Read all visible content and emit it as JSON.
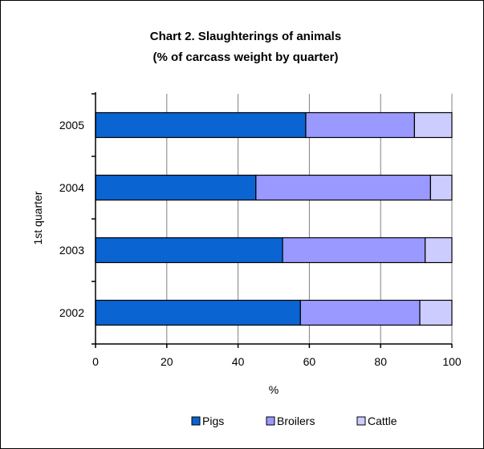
{
  "chart_data": {
    "type": "bar",
    "orientation": "horizontal",
    "stacked": true,
    "title_line1": "Chart 2.  Slaughterings of animals",
    "title_line2": "(% of carcass weight by quarter)",
    "xlabel": "%",
    "ylabel": "1st quarter",
    "xlim": [
      0,
      100
    ],
    "xticks": [
      "0",
      "20",
      "40",
      "60",
      "80",
      "100"
    ],
    "xtick_values": [
      0,
      20,
      40,
      60,
      80,
      100
    ],
    "categories": [
      "2005",
      "2004",
      "2003",
      "2002"
    ],
    "series": [
      {
        "name": "Pigs",
        "color": "#0a64d2",
        "values": [
          59,
          45,
          52.5,
          57.5
        ]
      },
      {
        "name": "Broilers",
        "color": "#9999ff",
        "values": [
          30.5,
          49,
          40,
          33.5
        ]
      },
      {
        "name": "Cattle",
        "color": "#ccccff",
        "values": [
          10.5,
          6,
          7.5,
          9
        ]
      }
    ],
    "grid": "vertical",
    "legend_position": "bottom"
  }
}
